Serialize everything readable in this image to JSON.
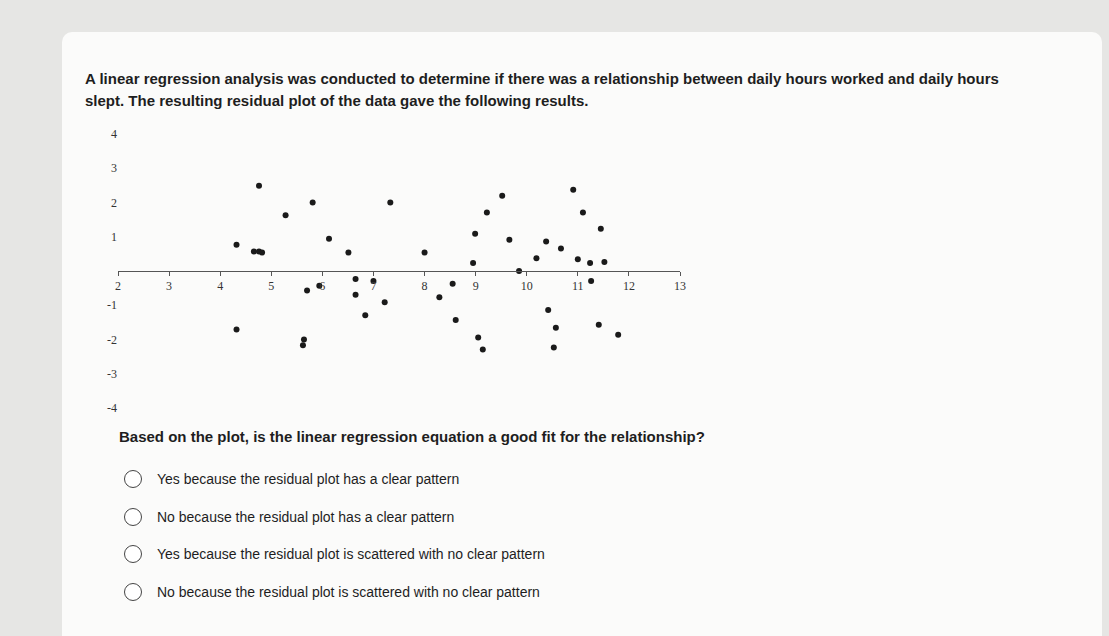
{
  "question": {
    "intro": "A linear regression analysis was conducted to determine if there was a relationship between daily hours worked and daily hours slept. The resulting residual plot of the data gave the following results.",
    "prompt": "Based on the plot, is the linear regression equation a good fit for the relationship?",
    "options": [
      "Yes because the residual plot has a clear pattern",
      "No because the residual plot has a clear pattern",
      "Yes because the residual plot is scattered with no clear pattern",
      "No because the residual plot is scattered with no clear pattern"
    ]
  },
  "chart_data": {
    "type": "scatter",
    "x": [
      4.76,
      5.28,
      5.81,
      7.33,
      4.32,
      4.66,
      4.76,
      4.82,
      6.13,
      6.51,
      8.0,
      5.7,
      5.94,
      6.65,
      6.65,
      7.0,
      7.22,
      6.84,
      8.29,
      8.55,
      4.32,
      5.64,
      5.62,
      8.61,
      9.05,
      9.14,
      9.52,
      9.22,
      8.99,
      8.95,
      9.66,
      9.85,
      10.19,
      10.38,
      10.67,
      10.91,
      11.1,
      11.45,
      11.0,
      11.24,
      11.52,
      11.26,
      10.42,
      10.57,
      10.53,
      11.41,
      11.79
    ],
    "values": [
      2.49,
      1.63,
      2.0,
      2.0,
      0.77,
      0.57,
      0.57,
      0.54,
      0.94,
      0.54,
      0.54,
      -0.57,
      -0.43,
      -0.23,
      -0.69,
      -0.29,
      -0.91,
      -1.29,
      -0.77,
      -0.37,
      -1.71,
      -2.0,
      -2.17,
      -1.43,
      -1.94,
      -2.29,
      2.2,
      1.71,
      1.09,
      0.23,
      0.91,
      0.0,
      0.37,
      0.86,
      0.66,
      2.37,
      1.71,
      1.23,
      0.34,
      0.23,
      0.26,
      -0.29,
      -1.14,
      -1.66,
      -2.23,
      -1.57,
      -1.86
    ],
    "color": "#1a1a1a",
    "marker": "circle",
    "xlim": [
      2,
      13
    ],
    "xticks": [
      2,
      3,
      4,
      5,
      6,
      7,
      8,
      9,
      10,
      11,
      12,
      13
    ],
    "ylim": [
      -4,
      4
    ],
    "yticks": [
      -4,
      -3,
      -2,
      -1,
      1,
      2,
      3,
      4
    ],
    "grid": false
  }
}
